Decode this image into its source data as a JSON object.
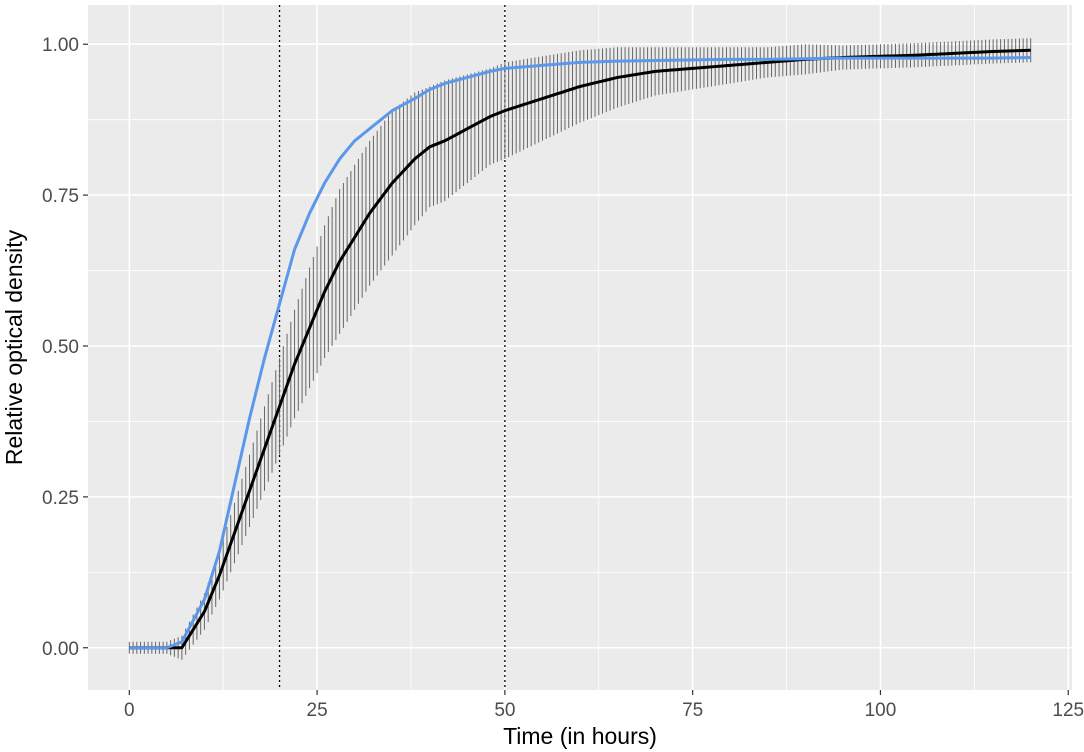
{
  "chart_data": {
    "type": "line",
    "title": "",
    "xlabel": "Time (in hours)",
    "ylabel": "Relative optical density",
    "xlim": [
      -5.5,
      125.5
    ],
    "ylim": [
      -0.07,
      1.065
    ],
    "xticks": [
      0,
      25,
      50,
      75,
      100,
      125
    ],
    "xtick_labels": [
      "0",
      "25",
      "50",
      "75",
      "100",
      "125"
    ],
    "yticks": [
      0.0,
      0.25,
      0.5,
      0.75,
      1.0
    ],
    "ytick_labels": [
      "0.00",
      "0.25",
      "0.50",
      "0.75",
      "1.00"
    ],
    "grid": true,
    "legend": "none",
    "panel_background": "#ebebeb",
    "grid_color": "#ffffff",
    "vlines": [
      20,
      50
    ],
    "series": [
      {
        "color": "#000000",
        "with_error_bars": true,
        "x": [
          0,
          5,
          7,
          10,
          12,
          14,
          16,
          18,
          20,
          22,
          24,
          26,
          28,
          30,
          32,
          35,
          38,
          40,
          42,
          45,
          48,
          50,
          55,
          60,
          65,
          70,
          75,
          80,
          85,
          90,
          95,
          100,
          105,
          110,
          115,
          120
        ],
        "y": [
          0.0,
          0.0,
          0.0,
          0.06,
          0.12,
          0.19,
          0.26,
          0.33,
          0.4,
          0.47,
          0.53,
          0.59,
          0.64,
          0.68,
          0.72,
          0.77,
          0.81,
          0.83,
          0.84,
          0.86,
          0.88,
          0.89,
          0.91,
          0.93,
          0.945,
          0.955,
          0.96,
          0.965,
          0.97,
          0.975,
          0.978,
          0.98,
          0.982,
          0.985,
          0.988,
          0.99
        ],
        "err": [
          0.01,
          0.01,
          0.02,
          0.03,
          0.04,
          0.05,
          0.06,
          0.07,
          0.08,
          0.09,
          0.1,
          0.11,
          0.12,
          0.12,
          0.12,
          0.12,
          0.11,
          0.1,
          0.1,
          0.09,
          0.08,
          0.08,
          0.07,
          0.06,
          0.05,
          0.04,
          0.035,
          0.03,
          0.025,
          0.025,
          0.02,
          0.02,
          0.02,
          0.02,
          0.02,
          0.02
        ]
      },
      {
        "color": "#5b97ea",
        "with_error_bars": false,
        "x": [
          0,
          5,
          7,
          10,
          12,
          14,
          16,
          18,
          20,
          22,
          24,
          26,
          28,
          30,
          32,
          35,
          38,
          40,
          42,
          45,
          48,
          50,
          55,
          60,
          65,
          70,
          75,
          80,
          85,
          90,
          95,
          100,
          105,
          110,
          115,
          120
        ],
        "y": [
          0.0,
          0.0,
          0.01,
          0.08,
          0.16,
          0.27,
          0.38,
          0.48,
          0.57,
          0.66,
          0.72,
          0.77,
          0.81,
          0.84,
          0.86,
          0.89,
          0.91,
          0.925,
          0.935,
          0.945,
          0.955,
          0.96,
          0.965,
          0.97,
          0.972,
          0.973,
          0.974,
          0.975,
          0.975,
          0.976,
          0.977,
          0.977,
          0.977,
          0.977,
          0.977,
          0.978
        ]
      }
    ]
  }
}
